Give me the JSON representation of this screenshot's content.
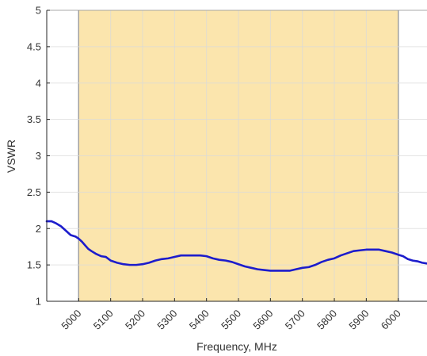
{
  "chart_data": {
    "type": "line",
    "title": "",
    "xlabel": "Frequency, MHz",
    "ylabel": "VSWR",
    "xlim": [
      4900,
      6090
    ],
    "ylim": [
      1,
      5
    ],
    "grid": true,
    "legend": "none",
    "x_ticks": [
      5000,
      5100,
      5200,
      5300,
      5400,
      5500,
      5600,
      5700,
      5800,
      5900,
      6000
    ],
    "x_tick_labels": [
      "5000",
      "5100",
      "5200",
      "5300",
      "5400",
      "5500",
      "5600",
      "5700",
      "5800",
      "5900",
      "6000"
    ],
    "y_ticks": [
      1,
      1.5,
      2,
      2.5,
      3,
      3.5,
      4,
      4.5,
      5
    ],
    "y_tick_labels": [
      "1",
      "1.5",
      "2",
      "2.5",
      "3",
      "3.5",
      "4",
      "4.5",
      "5"
    ],
    "highlight_band": {
      "x_start": 5000,
      "x_end": 6000,
      "color": "#fbe5ad"
    },
    "colors": {
      "line": "#1c1ccc",
      "grid": "#d9d9d9",
      "axis": "#262626",
      "band_border": "#333333"
    },
    "series": [
      {
        "x": [
          4900,
          4915,
          4930,
          4945,
          4960,
          4975,
          4990,
          5000,
          5010,
          5020,
          5030,
          5040,
          5055,
          5070,
          5085,
          5100,
          5120,
          5140,
          5160,
          5180,
          5200,
          5220,
          5240,
          5260,
          5280,
          5300,
          5320,
          5340,
          5360,
          5380,
          5400,
          5420,
          5440,
          5460,
          5480,
          5500,
          5520,
          5540,
          5560,
          5580,
          5600,
          5620,
          5640,
          5660,
          5680,
          5700,
          5720,
          5740,
          5760,
          5780,
          5800,
          5820,
          5840,
          5860,
          5880,
          5900,
          5920,
          5940,
          5960,
          5980,
          6000,
          6015,
          6030,
          6045,
          6060,
          6075,
          6090
        ],
        "y": [
          2.1,
          2.1,
          2.07,
          2.03,
          1.97,
          1.91,
          1.89,
          1.86,
          1.82,
          1.77,
          1.72,
          1.69,
          1.65,
          1.62,
          1.61,
          1.56,
          1.53,
          1.51,
          1.5,
          1.5,
          1.51,
          1.53,
          1.56,
          1.58,
          1.59,
          1.61,
          1.63,
          1.63,
          1.63,
          1.63,
          1.62,
          1.59,
          1.57,
          1.56,
          1.54,
          1.51,
          1.48,
          1.46,
          1.44,
          1.43,
          1.42,
          1.42,
          1.42,
          1.42,
          1.44,
          1.46,
          1.47,
          1.5,
          1.54,
          1.57,
          1.59,
          1.63,
          1.66,
          1.69,
          1.7,
          1.71,
          1.71,
          1.71,
          1.69,
          1.67,
          1.64,
          1.62,
          1.58,
          1.56,
          1.55,
          1.53,
          1.52
        ]
      }
    ]
  }
}
